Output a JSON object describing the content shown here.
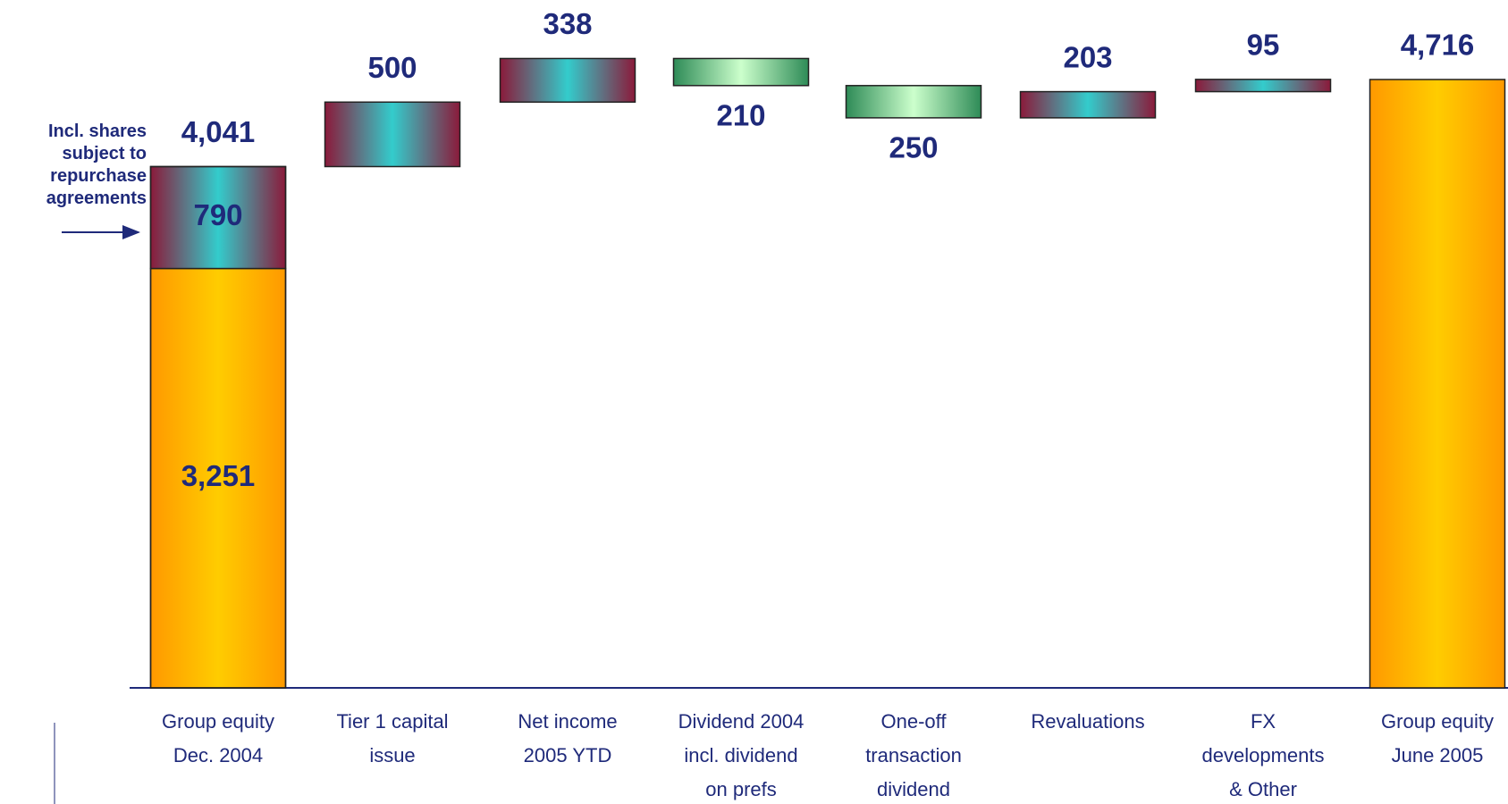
{
  "chart_data": {
    "type": "waterfall",
    "categories": [
      "Group equity\nDec. 2004",
      "Tier 1 capital\nissue",
      "Net income\n2005 YTD",
      "Dividend 2004\nincl. dividend\non prefs",
      "One-off\ntransaction\ndividend",
      "Revaluations",
      "FX\ndevelopments\n& Other",
      "Group equity\nJune 2005"
    ],
    "values": [
      4041,
      500,
      338,
      -210,
      -250,
      203,
      95,
      4716
    ],
    "value_labels": [
      "4,041",
      "500",
      "338",
      "210",
      "250",
      "203",
      "95",
      "4,716"
    ],
    "breakdown": {
      "values": [
        3251,
        790
      ],
      "value_labels": [
        "3,251",
        "790"
      ]
    },
    "annotation": "Incl. shares\nsubject to\nrepurchase\nagreements",
    "ylim": [
      0,
      5000
    ]
  }
}
